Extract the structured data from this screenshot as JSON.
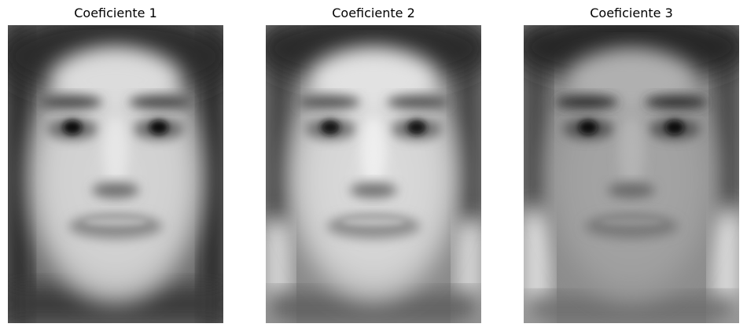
{
  "panels": [
    {
      "title": "Coeficiente 1",
      "variant": "dark-hair-light-skin"
    },
    {
      "title": "Coeficiente 2",
      "variant": "light-sides"
    },
    {
      "title": "Coeficiente 3",
      "variant": "grey-low-contrast"
    }
  ],
  "colors": {
    "background": "#ffffff",
    "title_text": "#000000"
  }
}
